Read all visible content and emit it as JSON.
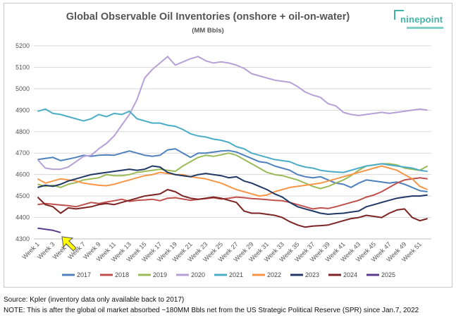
{
  "chart_data": {
    "type": "line",
    "title": "Global Observable Oil Inventories (onshore + oil-on-water)",
    "subtitle": "(MM Bbls)",
    "xlabel": "",
    "ylabel": "",
    "ylim": [
      4300,
      5200
    ],
    "yticks": [
      4300,
      4400,
      4500,
      4600,
      4700,
      4800,
      4900,
      5000,
      5100,
      5200
    ],
    "x": [
      1,
      2,
      3,
      4,
      5,
      6,
      7,
      8,
      9,
      10,
      11,
      12,
      13,
      14,
      15,
      16,
      17,
      18,
      19,
      20,
      21,
      22,
      23,
      24,
      25,
      26,
      27,
      28,
      29,
      30,
      31,
      32,
      33,
      34,
      35,
      36,
      37,
      38,
      39,
      40,
      41,
      42,
      43,
      44,
      45,
      46,
      47,
      48,
      49,
      50,
      51,
      52
    ],
    "xticks": [
      "Week 1",
      "Week 3",
      "Week 5",
      "Week 7",
      "Week 9",
      "Week 11",
      "Week 13",
      "Week 15",
      "Week 17",
      "Week 19",
      "Week 21",
      "Week 23",
      "Week 25",
      "Week 27",
      "Week 29",
      "Week 31",
      "Week 33",
      "Week 35",
      "Week 37",
      "Week 39",
      "Week 41",
      "Week 43",
      "Week 45",
      "Week 47",
      "Week 49",
      "Week 51"
    ],
    "grid": true,
    "legend": "bottom",
    "series": [
      {
        "name": "2017",
        "color": "#4f81bd",
        "values": [
          4670,
          4675,
          4680,
          4665,
          4672,
          4680,
          4690,
          4685,
          4690,
          4692,
          4690,
          4700,
          4710,
          4700,
          4690,
          4685,
          4690,
          4715,
          4720,
          4700,
          4680,
          4700,
          4700,
          4705,
          4710,
          4712,
          4705,
          4690,
          4675,
          4660,
          4655,
          4640,
          4630,
          4620,
          4600,
          4590,
          4585,
          4590,
          4575,
          4560,
          4555,
          4540,
          4560,
          4575,
          4570,
          4565,
          4560,
          4565,
          4555,
          4540,
          4525,
          4520
        ]
      },
      {
        "name": "2018",
        "color": "#c0504d",
        "values": [
          4460,
          4465,
          4462,
          4458,
          4455,
          4450,
          4460,
          4470,
          4465,
          4472,
          4478,
          4485,
          4475,
          4480,
          4482,
          4485,
          4478,
          4490,
          4492,
          4486,
          4480,
          4485,
          4488,
          4492,
          4486,
          4490,
          4495,
          4492,
          4488,
          4486,
          4483,
          4480,
          4478,
          4470,
          4460,
          4450,
          4440,
          4445,
          4442,
          4450,
          4460,
          4470,
          4480,
          4495,
          4505,
          4520,
          4540,
          4560,
          4575,
          4580,
          4585,
          4580
        ]
      },
      {
        "name": "2019",
        "color": "#9bbb59",
        "values": [
          4555,
          4545,
          4550,
          4540,
          4555,
          4562,
          4575,
          4580,
          4585,
          4600,
          4595,
          4595,
          4600,
          4610,
          4615,
          4620,
          4625,
          4620,
          4615,
          4640,
          4660,
          4680,
          4690,
          4685,
          4692,
          4700,
          4690,
          4670,
          4650,
          4630,
          4610,
          4600,
          4595,
          4585,
          4575,
          4560,
          4545,
          4535,
          4545,
          4560,
          4575,
          4595,
          4620,
          4640,
          4645,
          4650,
          4650,
          4645,
          4630,
          4625,
          4620,
          4640
        ]
      },
      {
        "name": "2020",
        "color": "#b6a1d6",
        "values": [
          4670,
          4630,
          4625,
          4625,
          4635,
          4660,
          4685,
          4690,
          4720,
          4745,
          4780,
          4830,
          4880,
          4950,
          5050,
          5090,
          5120,
          5150,
          5110,
          5125,
          5140,
          5150,
          5130,
          5120,
          5125,
          5120,
          5110,
          5095,
          5070,
          5060,
          5050,
          5040,
          5035,
          5030,
          5010,
          4985,
          4970,
          4960,
          4930,
          4920,
          4890,
          4880,
          4875,
          4880,
          4885,
          4890,
          4885,
          4890,
          4895,
          4900,
          4905,
          4900
        ]
      },
      {
        "name": "2021",
        "color": "#4bacc6",
        "values": [
          4895,
          4905,
          4885,
          4880,
          4870,
          4860,
          4850,
          4860,
          4880,
          4870,
          4885,
          4880,
          4895,
          4860,
          4850,
          4840,
          4840,
          4830,
          4825,
          4810,
          4790,
          4780,
          4775,
          4765,
          4760,
          4750,
          4730,
          4720,
          4700,
          4690,
          4680,
          4670,
          4665,
          4660,
          4645,
          4635,
          4630,
          4620,
          4615,
          4612,
          4610,
          4620,
          4630,
          4640,
          4645,
          4650,
          4645,
          4640,
          4635,
          4630,
          4620,
          4615
        ]
      },
      {
        "name": "2022",
        "color": "#f79646",
        "values": [
          4580,
          4560,
          4570,
          4580,
          4575,
          4570,
          4560,
          4555,
          4550,
          4548,
          4555,
          4565,
          4575,
          4585,
          4595,
          4600,
          4610,
          4605,
          4600,
          4600,
          4590,
          4585,
          4580,
          4570,
          4560,
          4545,
          4530,
          4520,
          4510,
          4500,
          4505,
          4520,
          4530,
          4540,
          4545,
          4550,
          4555,
          4560,
          4570,
          4580,
          4590,
          4600,
          4610,
          4620,
          4630,
          4640,
          4630,
          4620,
          4600,
          4580,
          4545,
          4530
        ]
      },
      {
        "name": "2023",
        "color": "#1f3864",
        "values": [
          4540,
          4550,
          4545,
          4555,
          4570,
          4580,
          4590,
          4600,
          4605,
          4610,
          4615,
          4620,
          4625,
          4620,
          4625,
          4640,
          4635,
          4610,
          4600,
          4595,
          4590,
          4600,
          4605,
          4600,
          4595,
          4585,
          4590,
          4570,
          4560,
          4545,
          4530,
          4510,
          4495,
          4470,
          4450,
          4440,
          4430,
          4420,
          4415,
          4418,
          4420,
          4425,
          4430,
          4450,
          4460,
          4470,
          4480,
          4490,
          4495,
          4500,
          4500,
          4505
        ]
      },
      {
        "name": "2024",
        "color": "#7b2423",
        "values": [
          4495,
          4460,
          4450,
          4420,
          4445,
          4440,
          4445,
          4450,
          4460,
          4465,
          4460,
          4470,
          4480,
          4490,
          4500,
          4505,
          4510,
          4530,
          4520,
          4500,
          4490,
          4485,
          4490,
          4495,
          4490,
          4480,
          4470,
          4430,
          4420,
          4420,
          4415,
          4410,
          4400,
          4380,
          4365,
          4355,
          4360,
          4362,
          4365,
          4375,
          4385,
          4395,
          4400,
          4410,
          4405,
          4400,
          4420,
          4435,
          4440,
          4400,
          4385,
          4395
        ]
      },
      {
        "name": "2025",
        "color": "#5b3b8a",
        "values": [
          4350,
          4345,
          4340,
          4330,
          null,
          null,
          null,
          null,
          null,
          null,
          null,
          null,
          null,
          null,
          null,
          null,
          null,
          null,
          null,
          null,
          null,
          null,
          null,
          null,
          null,
          null,
          null,
          null,
          null,
          null,
          null,
          null,
          null,
          null,
          null,
          null,
          null,
          null,
          null,
          null,
          null,
          null,
          null,
          null,
          null,
          null,
          null,
          null,
          null,
          null,
          null,
          null
        ]
      }
    ]
  },
  "logo": {
    "brand": "ninepoint"
  },
  "footer": {
    "source": "Source: Kpler (inventory data only available back to 2017)",
    "note": "NOTE: This is after the global oil market absorbed ~180MM Bbls net from the US Strategic Political Reserve (SPR) since Jan.7, 2022"
  },
  "annotation": {
    "arrow_color": "#ffff00",
    "arrow_target_week": 4
  }
}
